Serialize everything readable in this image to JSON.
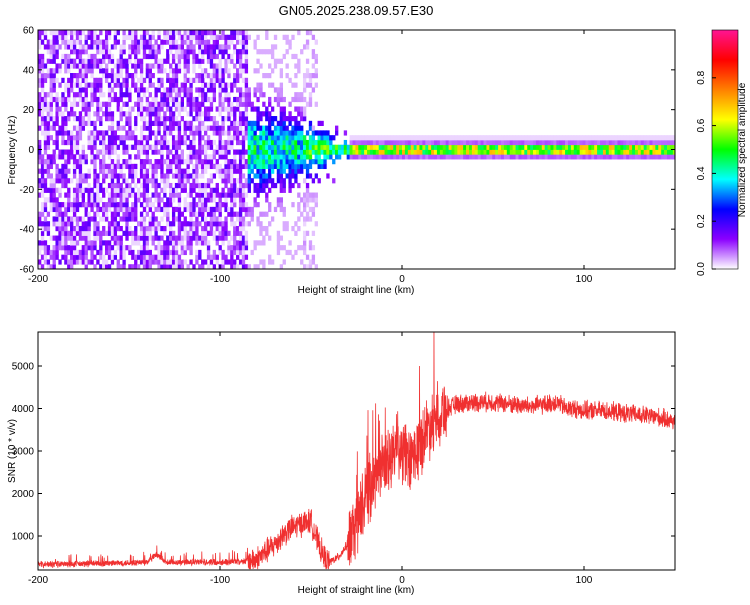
{
  "page": {
    "title": "GN05.2025.238.09.57.E30"
  },
  "chart_data": [
    {
      "type": "heatmap",
      "title": "GN05.2025.238.09.57.E30",
      "xlabel": "Height of straight line (km)",
      "ylabel": "Frequency (Hz)",
      "xlim": [
        -200,
        150
      ],
      "ylim": [
        -60,
        60
      ],
      "xticks": [
        -200,
        -100,
        0,
        100
      ],
      "yticks": [
        -60,
        -40,
        -20,
        0,
        20,
        40,
        60
      ],
      "xtick_labels": [
        "-200",
        "-100",
        "0",
        "100"
      ],
      "ytick_labels": [
        "-60",
        "-40",
        "-20",
        "0",
        "20",
        "40",
        "60"
      ],
      "colorbar": {
        "label": "Normalized spectral amplitude",
        "range": [
          0.0,
          1.0
        ],
        "ticks": [
          0.0,
          0.2,
          0.4,
          0.6,
          0.8
        ],
        "tick_labels": [
          "0.0",
          "0.2",
          "0.4",
          "0.6",
          "0.8"
        ],
        "colors": [
          "#ffffff",
          "#8b00ff",
          "#0000ff",
          "#00ffff",
          "#00ff00",
          "#ffff00",
          "#ff8000",
          "#ff0000",
          "#ff1493"
        ]
      },
      "regions": [
        {
          "name": "scattered noise",
          "x_range": [
            -200,
            -85
          ],
          "f_range": [
            -60,
            60
          ],
          "amplitude": 0.05
        },
        {
          "name": "transition cluster",
          "x_range": [
            -95,
            -30
          ],
          "f_range": [
            -15,
            15
          ],
          "amplitude": 0.3
        },
        {
          "name": "narrow band near 0 Hz",
          "x_range": [
            -30,
            150
          ],
          "f_range": [
            -3,
            3
          ],
          "amplitude": 0.7
        }
      ]
    },
    {
      "type": "line",
      "xlabel": "Height of straight line (km)",
      "ylabel": "SNR (10 * v/v)",
      "xlim": [
        -200,
        150
      ],
      "ylim": [
        200,
        5800
      ],
      "xticks": [
        -200,
        -100,
        0,
        100
      ],
      "yticks": [
        1000,
        2000,
        3000,
        4000,
        5000
      ],
      "xtick_labels": [
        "-200",
        "-100",
        "0",
        "100"
      ],
      "ytick_labels": [
        "1000",
        "2000",
        "3000",
        "4000",
        "5000"
      ],
      "color": "#f03030",
      "x": [
        -200,
        -180,
        -160,
        -140,
        -135,
        -130,
        -120,
        -100,
        -90,
        -80,
        -75,
        -70,
        -65,
        -60,
        -55,
        -50,
        -45,
        -42,
        -40,
        -35,
        -30,
        -25,
        -20,
        -15,
        -10,
        -5,
        0,
        5,
        10,
        15,
        20,
        25,
        30,
        40,
        50,
        60,
        70,
        80,
        85,
        90,
        95,
        100,
        110,
        120,
        130,
        140,
        150
      ],
      "y": [
        330,
        340,
        360,
        380,
        560,
        380,
        380,
        390,
        400,
        450,
        620,
        800,
        1050,
        1200,
        1300,
        1350,
        700,
        450,
        380,
        500,
        800,
        1300,
        1900,
        2400,
        2600,
        2900,
        3000,
        2700,
        3200,
        3600,
        3900,
        4000,
        4100,
        4150,
        4150,
        4100,
        4050,
        4100,
        4150,
        4000,
        4000,
        3950,
        3950,
        3900,
        3850,
        3800,
        3700
      ]
    }
  ]
}
